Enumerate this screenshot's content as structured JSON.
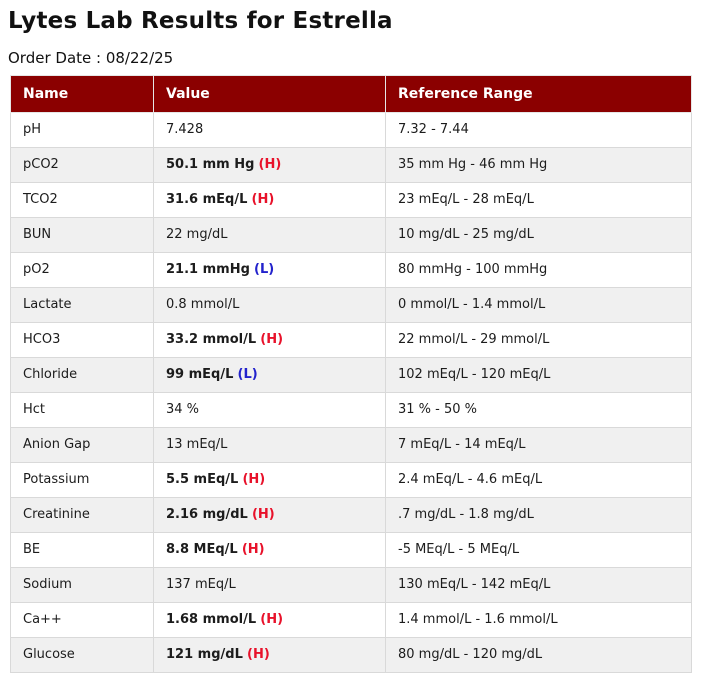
{
  "page": {
    "title": "Lytes Lab Results for Estrella",
    "order_date": "Order Date : 08/22/25"
  },
  "colors": {
    "header_bg": "#8b0000",
    "header_fg": "#ffffff",
    "flag_high": "#e8112a",
    "flag_low": "#2222cc",
    "row_alt": "#f0f0f0"
  },
  "table": {
    "headers": [
      "Name",
      "Value",
      "Reference Range"
    ],
    "rows": [
      {
        "name": "pH",
        "value": "7.428",
        "flag": "",
        "severity": "normal",
        "range": "7.32 - 7.44"
      },
      {
        "name": "pCO2",
        "value": "50.1 mm Hg",
        "flag": "(H)",
        "severity": "high",
        "range": "35 mm Hg - 46 mm Hg"
      },
      {
        "name": "TCO2",
        "value": "31.6 mEq/L",
        "flag": "(H)",
        "severity": "high",
        "range": "23 mEq/L - 28 mEq/L"
      },
      {
        "name": "BUN",
        "value": "22 mg/dL",
        "flag": "",
        "severity": "normal",
        "range": "10 mg/dL - 25 mg/dL"
      },
      {
        "name": "pO2",
        "value": "21.1 mmHg",
        "flag": "(L)",
        "severity": "low",
        "range": "80 mmHg - 100 mmHg"
      },
      {
        "name": "Lactate",
        "value": "0.8 mmol/L",
        "flag": "",
        "severity": "normal",
        "range": "0 mmol/L - 1.4 mmol/L"
      },
      {
        "name": "HCO3",
        "value": "33.2 mmol/L",
        "flag": "(H)",
        "severity": "high",
        "range": "22 mmol/L - 29 mmol/L"
      },
      {
        "name": "Chloride",
        "value": "99 mEq/L",
        "flag": "(L)",
        "severity": "low",
        "range": "102 mEq/L - 120 mEq/L"
      },
      {
        "name": "Hct",
        "value": "34 %",
        "flag": "",
        "severity": "normal",
        "range": "31 % - 50 %"
      },
      {
        "name": "Anion Gap",
        "value": "13 mEq/L",
        "flag": "",
        "severity": "normal",
        "range": "7 mEq/L - 14 mEq/L"
      },
      {
        "name": "Potassium",
        "value": "5.5 mEq/L",
        "flag": "(H)",
        "severity": "high",
        "range": "2.4 mEq/L - 4.6 mEq/L"
      },
      {
        "name": "Creatinine",
        "value": "2.16 mg/dL",
        "flag": "(H)",
        "severity": "high",
        "range": ".7 mg/dL - 1.8 mg/dL"
      },
      {
        "name": "BE",
        "value": "8.8 MEq/L",
        "flag": "(H)",
        "severity": "high",
        "range": "-5 MEq/L - 5 MEq/L"
      },
      {
        "name": "Sodium",
        "value": "137 mEq/L",
        "flag": "",
        "severity": "normal",
        "range": "130 mEq/L - 142 mEq/L"
      },
      {
        "name": "Ca++",
        "value": "1.68 mmol/L",
        "flag": "(H)",
        "severity": "high",
        "range": "1.4 mmol/L - 1.6 mmol/L"
      },
      {
        "name": "Glucose",
        "value": "121 mg/dL",
        "flag": "(H)",
        "severity": "high",
        "range": "80 mg/dL - 120 mg/dL"
      }
    ]
  }
}
